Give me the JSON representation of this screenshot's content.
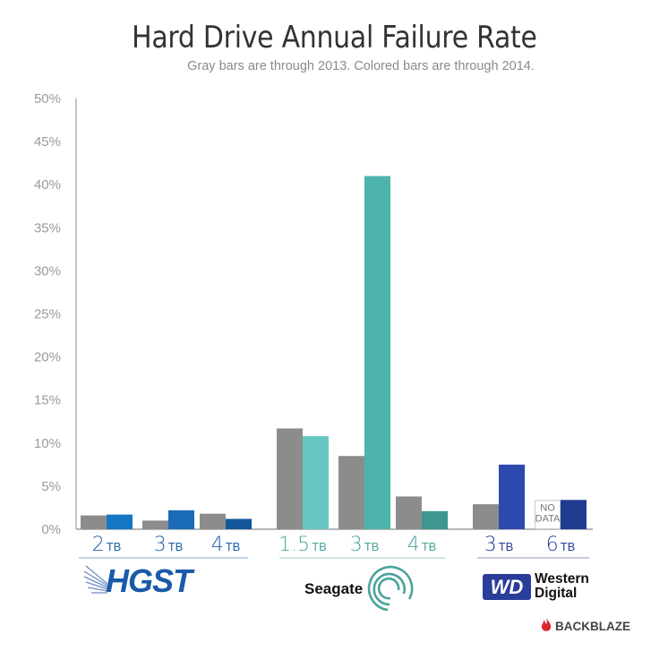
{
  "chart_data": {
    "type": "bar",
    "title": "Hard Drive Annual Failure Rate",
    "subtitle": "Gray bars are through 2013.  Colored bars are through 2014.",
    "xlabel": "",
    "ylabel": "",
    "ylim": [
      0,
      50
    ],
    "yticks": [
      "0%",
      "5%",
      "10%",
      "15%",
      "20%",
      "25%",
      "30%",
      "35%",
      "40%",
      "45%",
      "50%"
    ],
    "ytick_values": [
      0,
      5,
      10,
      15,
      20,
      25,
      30,
      35,
      40,
      45,
      50
    ],
    "grid": false,
    "legend": "none",
    "series_names": [
      "through 2013",
      "through 2014"
    ],
    "groups": [
      {
        "brand": "HGST",
        "brand_color": "#1a5aa6",
        "label_color": "#1e5fa8",
        "drives": [
          {
            "size": "2",
            "unit": "TB",
            "gray": 1.6,
            "color": 1.7,
            "bar_color": "#1577c4"
          },
          {
            "size": "3",
            "unit": "TB",
            "gray": 1.0,
            "color": 2.2,
            "bar_color": "#1a6bb8"
          },
          {
            "size": "4",
            "unit": "TB",
            "gray": 1.8,
            "color": 1.2,
            "bar_color": "#12579c"
          }
        ]
      },
      {
        "brand": "Seagate",
        "brand_color": "#4aa39a",
        "label_color": "#4aa39a",
        "drives": [
          {
            "size": "1.5",
            "unit": "TB",
            "gray": 11.7,
            "color": 10.8,
            "bar_color": "#66c6c2"
          },
          {
            "size": "3",
            "unit": "TB",
            "gray": 8.5,
            "color": 41.0,
            "bar_color": "#4fb3ad"
          },
          {
            "size": "4",
            "unit": "TB",
            "gray": 3.8,
            "color": 2.1,
            "bar_color": "#3f9690"
          }
        ]
      },
      {
        "brand": "Western Digital",
        "brand_color": "#2a3d99",
        "label_color": "#2a3d99",
        "drives": [
          {
            "size": "3",
            "unit": "TB",
            "gray": 2.9,
            "color": 7.5,
            "bar_color": "#2c4aad"
          },
          {
            "size": "6",
            "unit": "TB",
            "gray": null,
            "gray_note": "NO DATA",
            "color": 3.4,
            "bar_color": "#1f3c91"
          }
        ]
      }
    ],
    "gray_color": "#8c8c8c"
  },
  "logos": {
    "hgst": "HGST",
    "seagate": "Seagate",
    "wd_mark": "WD",
    "wd_line1": "Western",
    "wd_line2": "Digital",
    "backblaze": "BACKBLAZE"
  }
}
